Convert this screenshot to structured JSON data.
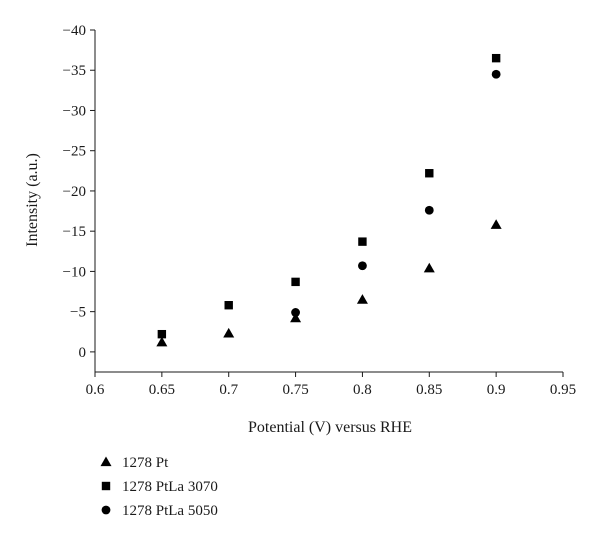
{
  "chart_data": {
    "type": "scatter",
    "xlabel": "Potential (V) versus RHE",
    "ylabel": "Intensity (a.u.)",
    "xlim": [
      0.6,
      0.95
    ],
    "ylim": [
      2.5,
      -40
    ],
    "x_ticks": [
      0.6,
      0.65,
      0.7,
      0.75,
      0.8,
      0.85,
      0.9,
      0.95
    ],
    "x_tick_labels": [
      "0.6",
      "0.65",
      "0.7",
      "0.75",
      "0.8",
      "0.85",
      "0.9",
      "0.95"
    ],
    "y_ticks": [
      0,
      -5,
      -10,
      -15,
      -20,
      -25,
      -30,
      -35,
      -40
    ],
    "y_tick_labels": [
      "0",
      "−5",
      "−10",
      "−15",
      "−20",
      "−25",
      "−30",
      "−35",
      "−40"
    ],
    "grid": false,
    "legend_position": "bottom-left",
    "series": [
      {
        "name": "1278 Pt",
        "marker": "triangle",
        "color": "#000000",
        "x": [
          0.65,
          0.7,
          0.75,
          0.8,
          0.85,
          0.9
        ],
        "y": [
          -1.2,
          -2.3,
          -4.2,
          -6.5,
          -10.4,
          -15.8
        ]
      },
      {
        "name": "1278 PtLa 3070",
        "marker": "square",
        "color": "#000000",
        "x": [
          0.65,
          0.7,
          0.75,
          0.8,
          0.85,
          0.9
        ],
        "y": [
          -2.2,
          -5.8,
          -8.7,
          -13.7,
          -22.2,
          -36.5
        ]
      },
      {
        "name": "1278 PtLa 5050",
        "marker": "circle",
        "color": "#000000",
        "x": [
          0.75,
          0.8,
          0.85,
          0.9
        ],
        "y": [
          -4.9,
          -10.7,
          -17.6,
          -34.5
        ]
      }
    ]
  }
}
